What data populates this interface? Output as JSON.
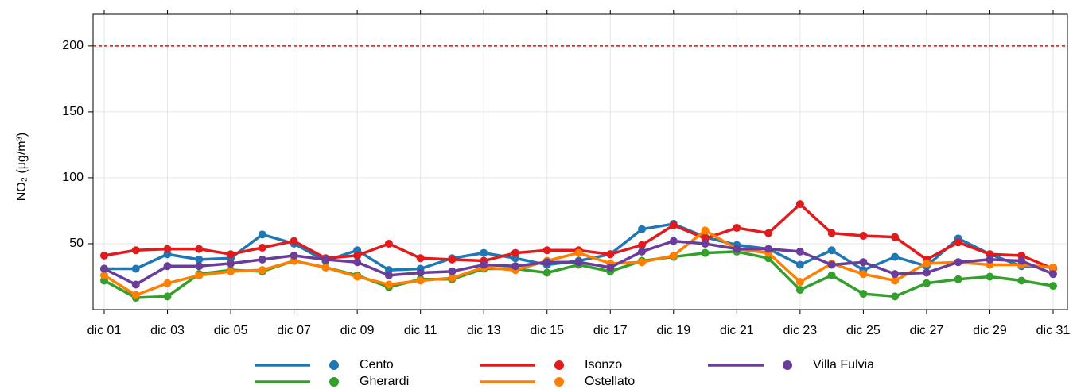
{
  "chart_data": {
    "type": "line",
    "y_label": "NO₂ (µg/m³)",
    "categories": [
      "dic 01",
      null,
      "dic 03",
      null,
      "dic 05",
      null,
      "dic 07",
      null,
      "dic 09",
      null,
      "dic 11",
      null,
      "dic 13",
      null,
      "dic 15",
      null,
      "dic 17",
      null,
      "dic 19",
      null,
      "dic 21",
      null,
      "dic 23",
      null,
      "dic 25",
      null,
      "dic 27",
      null,
      "dic 29",
      null,
      "dic 31"
    ],
    "ylim": [
      0,
      224
    ],
    "yticks": [
      50,
      100,
      150,
      200
    ],
    "grid": true,
    "reference_line": {
      "value": 200,
      "color": "#ff0000"
    },
    "series": [
      {
        "name": "Cento",
        "color": "#1f78b4",
        "values": [
          31,
          31,
          42,
          38,
          39,
          57,
          50,
          37,
          45,
          30,
          31,
          39,
          43,
          39,
          34,
          37,
          42,
          61,
          65,
          55,
          49,
          46,
          34,
          45,
          30,
          40,
          33,
          54,
          42,
          33,
          32
        ]
      },
      {
        "name": "Gherardi",
        "color": "#33a02c",
        "values": [
          22,
          9,
          10,
          27,
          30,
          29,
          37,
          32,
          26,
          17,
          23,
          23,
          31,
          31,
          28,
          34,
          29,
          37,
          40,
          43,
          44,
          39,
          15,
          26,
          12,
          10,
          20,
          23,
          25,
          22,
          18
        ]
      },
      {
        "name": "Isonzo",
        "color": "#e31a1c",
        "values": [
          41,
          45,
          46,
          46,
          42,
          47,
          52,
          39,
          41,
          50,
          39,
          38,
          37,
          43,
          45,
          45,
          42,
          49,
          64,
          54,
          62,
          58,
          80,
          58,
          56,
          55,
          38,
          51,
          42,
          41,
          31
        ]
      },
      {
        "name": "Ostellato",
        "color": "#ff7f00",
        "values": [
          26,
          11,
          20,
          26,
          29,
          30,
          37,
          32,
          25,
          19,
          22,
          24,
          32,
          30,
          37,
          43,
          35,
          36,
          41,
          60,
          46,
          43,
          21,
          35,
          27,
          22,
          35,
          36,
          34,
          34,
          32
        ]
      },
      {
        "name": "Villa Fulvia",
        "color": "#6a3d9a",
        "values": [
          31,
          19,
          33,
          33,
          35,
          38,
          41,
          38,
          36,
          26,
          28,
          29,
          34,
          33,
          36,
          36,
          32,
          44,
          52,
          50,
          46,
          46,
          44,
          34,
          36,
          27,
          28,
          36,
          38,
          37,
          27
        ]
      }
    ]
  }
}
